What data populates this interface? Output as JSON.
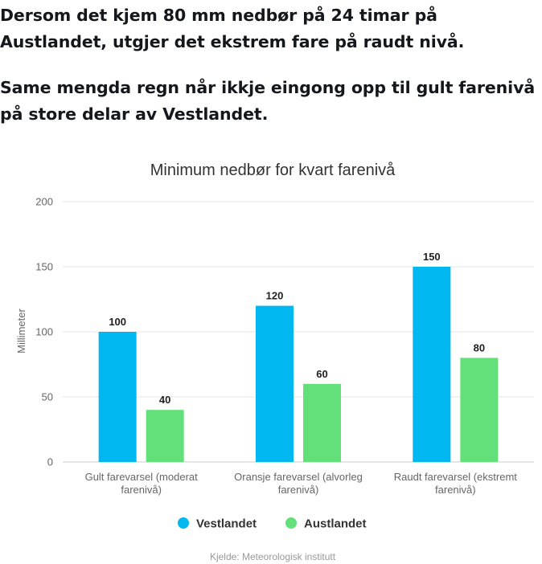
{
  "headlines": {
    "first": "Dersom det kjem 80 mm nedbør på 24 timar på Austlandet, utgjer det ekstrem fare på raudt nivå.",
    "second": "Same mengda regn når ikkje eingong opp til gult farenivå på store delar av Vestlandet."
  },
  "source": "Kjelde: Meteorologisk institutt",
  "colors": {
    "vestlandet": "#00b7f0",
    "austlandet": "#64e07a",
    "grid": "#e6e6e6",
    "text": "#212121",
    "axis_text": "#666666"
  },
  "chart_data": {
    "type": "bar",
    "title": "Minimum nedbør for kvart farenivå",
    "ylabel": "Millimeter",
    "xlabel": "",
    "ylim": [
      0,
      200
    ],
    "yticks": [
      0,
      50,
      100,
      150,
      200
    ],
    "categories": [
      [
        "Gult farevarsel (moderat",
        "farenivå)"
      ],
      [
        "Oransje farevarsel (alvorleg",
        "farenivå)"
      ],
      [
        "Raudt farevarsel (ekstremt",
        "farenivå)"
      ]
    ],
    "series": [
      {
        "name": "Vestlandet",
        "values": [
          100,
          120,
          150
        ]
      },
      {
        "name": "Austlandet",
        "values": [
          40,
          60,
          80
        ]
      }
    ],
    "legend": "bottom-center",
    "grid": true
  }
}
